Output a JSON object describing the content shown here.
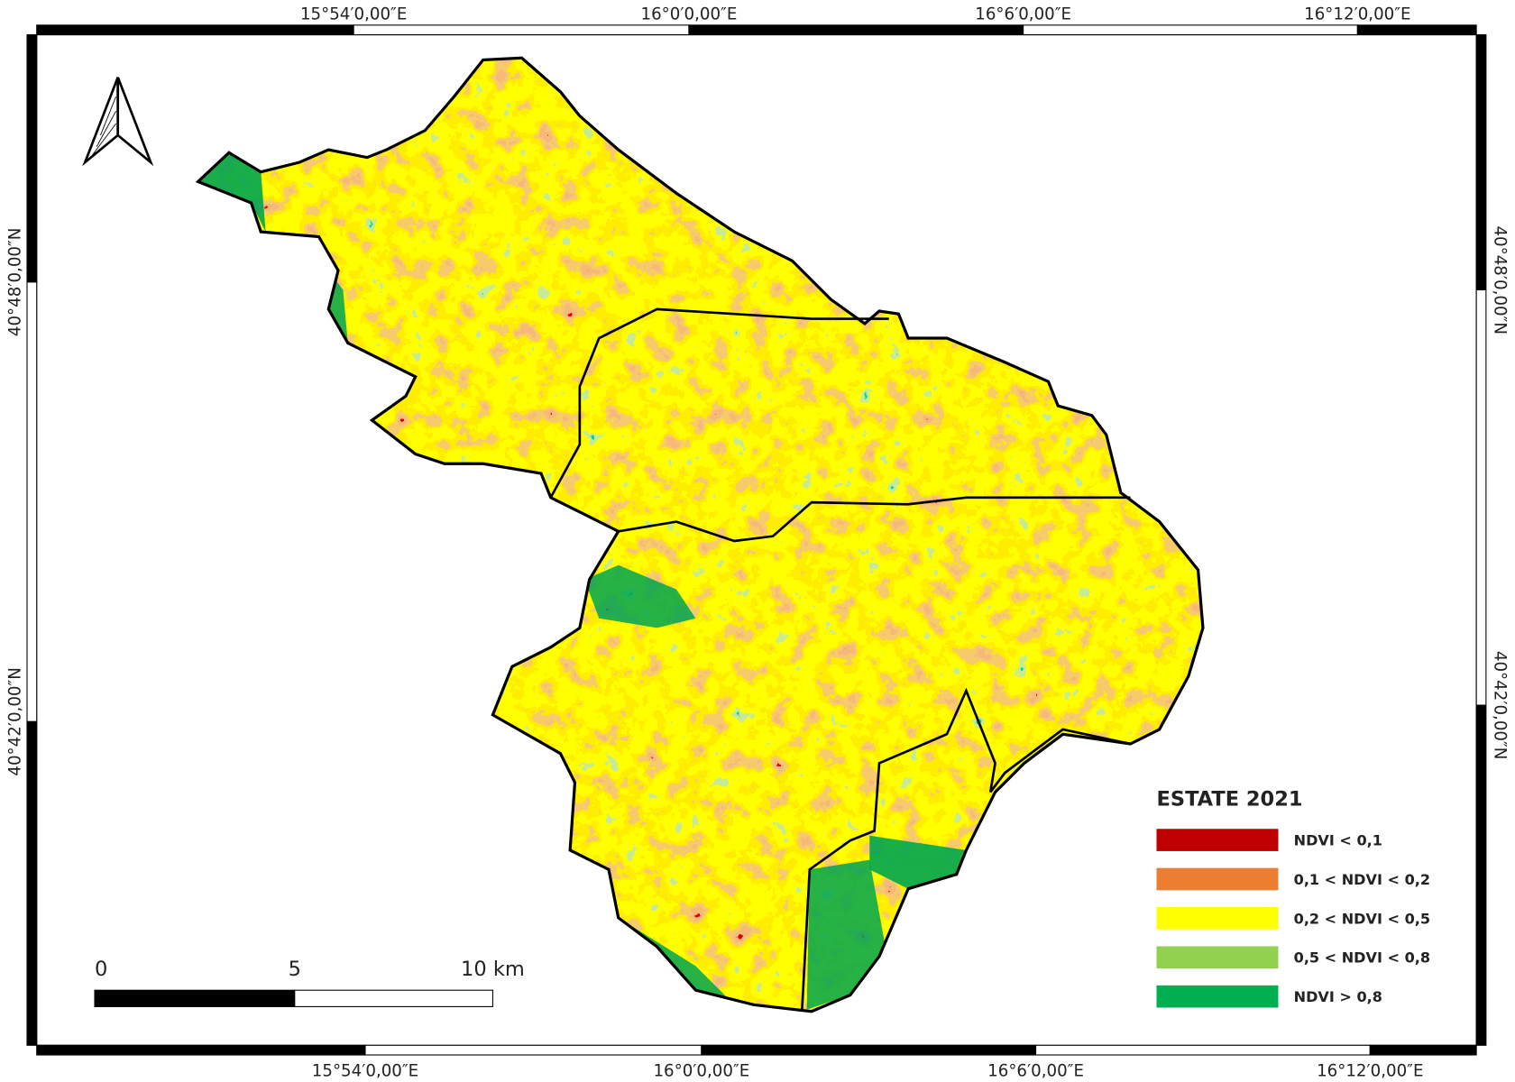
{
  "frame": {
    "top_labels": [
      "15°54′0,00″E",
      "16°0′0,00″E",
      "16°6′0,00″E",
      "16°12′0,00″E"
    ],
    "bottom_labels": [
      "15°54′0,00″E",
      "16°0′0,00″E",
      "16°6′0,00″E",
      "16°12′0,00″E"
    ],
    "left_labels": [
      "40°48′0,00″N",
      "40°42′0,00″N"
    ],
    "right_labels": [
      "40°48′0,00″N",
      "40°42′0,00″N"
    ]
  },
  "legend": {
    "title": "ESTATE 2021",
    "items": [
      {
        "label": "NDVI < 0,1",
        "color": "#c00000"
      },
      {
        "label": "0,1 < NDVI < 0,2",
        "color": "#ed7d31"
      },
      {
        "label": "0,2 < NDVI < 0,5",
        "color": "#ffff00"
      },
      {
        "label": "0,5 < NDVI < 0,8",
        "color": "#92d050"
      },
      {
        "label": "NDVI > 0,8",
        "color": "#00b050"
      }
    ]
  },
  "scale_bar": {
    "labels": [
      "0",
      "5",
      "10 km"
    ]
  }
}
